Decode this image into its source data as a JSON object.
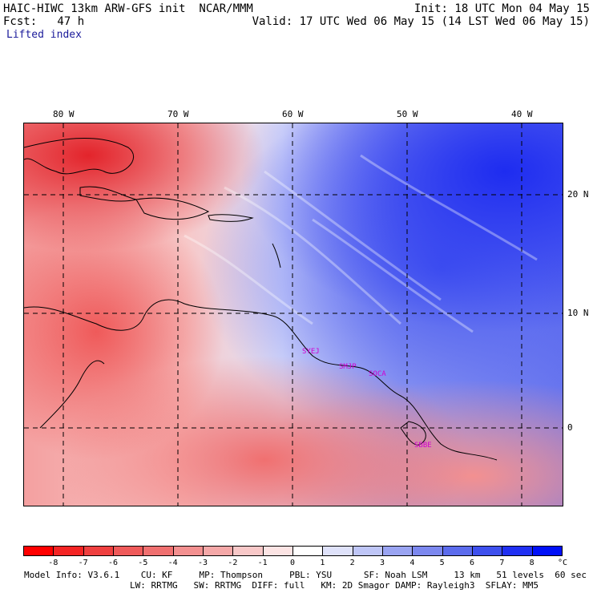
{
  "header": {
    "line1_left": "HAIC-HIWC 13km ARW-GFS init  NCAR/MMM",
    "line1_right": "Init: 18 UTC Mon 04 May 15",
    "line2_left": "Fcst:   47 h",
    "line2_right": "Valid: 17 UTC Wed 06 May 15 (14 LST Wed 06 May 15)",
    "field": "Lifted index"
  },
  "map": {
    "lon_labels": [
      "80 W",
      "70 W",
      "60 W",
      "50 W",
      "40 W"
    ],
    "lat_labels": [
      "20 N",
      "10 N",
      "0"
    ],
    "stations": [
      "SYEJ",
      "SMJP",
      "SOCA",
      "SBBE"
    ]
  },
  "colorbar": {
    "ticks": [
      "-8",
      "-7",
      "-6",
      "-5",
      "-4",
      "-3",
      "-2",
      "-1",
      "0",
      "1",
      "2",
      "3",
      "4",
      "5",
      "6",
      "7",
      "8"
    ],
    "unit": "°C",
    "colors": [
      "#ff0000",
      "#f42424",
      "#ef4040",
      "#ef5a5a",
      "#f07070",
      "#f39090",
      "#f5a8a8",
      "#f8c8c8",
      "#fce4e4",
      "#ffffff",
      "#dfe2fa",
      "#bfc6f7",
      "#9aa4f2",
      "#7c88ef",
      "#5c6ced",
      "#3e50ee",
      "#2030f3",
      "#0010f8"
    ]
  },
  "footer": {
    "line1": "Model Info: V3.6.1    CU: KF     MP: Thompson     PBL: YSU      SF: Noah LSM     13 km   51 levels  60 sec",
    "line2": "LW: RRTMG   SW: RRTMG  DIFF: full   KM: 2D Smagor DAMP: Rayleigh3  SFLAY: MM5"
  }
}
